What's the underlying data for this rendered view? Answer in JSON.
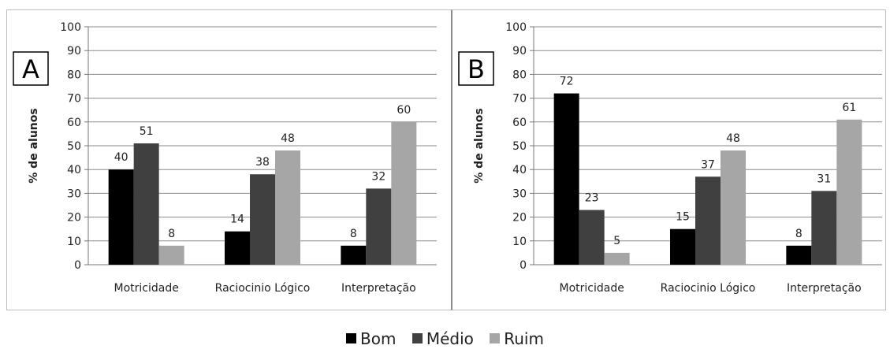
{
  "chart_data": [
    {
      "type": "bar",
      "panel_label": "A",
      "categories": [
        "Motricidade",
        "Raciocinio Lógico",
        "Interpretação"
      ],
      "series": [
        {
          "name": "Bom",
          "values": [
            40,
            14,
            8
          ]
        },
        {
          "name": "Médio",
          "values": [
            51,
            38,
            32
          ]
        },
        {
          "name": "Ruim",
          "values": [
            8,
            48,
            60
          ]
        }
      ],
      "ylabel": "% de alunos",
      "ylim": [
        0,
        100
      ],
      "yticks": [
        0,
        10,
        20,
        30,
        40,
        50,
        60,
        70,
        80,
        90,
        100
      ],
      "grid": true,
      "legend": "bottom"
    },
    {
      "type": "bar",
      "panel_label": "B",
      "categories": [
        "Motricidade",
        "Raciocinio Lógico",
        "Interpretação"
      ],
      "series": [
        {
          "name": "Bom",
          "values": [
            72,
            15,
            8
          ]
        },
        {
          "name": "Médio",
          "values": [
            23,
            37,
            31
          ]
        },
        {
          "name": "Ruim",
          "values": [
            5,
            48,
            61
          ]
        }
      ],
      "ylabel": "% de alunos",
      "ylim": [
        0,
        100
      ],
      "yticks": [
        0,
        10,
        20,
        30,
        40,
        50,
        60,
        70,
        80,
        90,
        100
      ],
      "grid": true,
      "legend": "bottom"
    }
  ],
  "legend": [
    {
      "name": "Bom",
      "color": "#000000"
    },
    {
      "name": "Médio",
      "color": "#404040"
    },
    {
      "name": "Ruim",
      "color": "#a6a6a6"
    }
  ]
}
